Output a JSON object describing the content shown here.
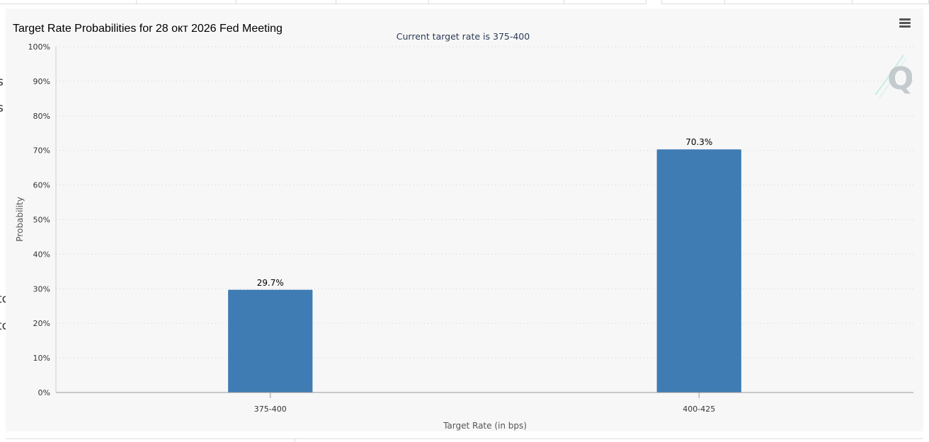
{
  "page": {
    "left_fragments": [
      "s",
      "s",
      "tc",
      "tc"
    ]
  },
  "chart": {
    "title": "Target Rate Probabilities for 28 окт 2026 Fed Meeting",
    "menu_icon": "hamburger-menu-icon",
    "watermark_icon": "quikstrike-q-logo-icon",
    "bar_color": "#3f7cb4"
  },
  "chart_data": {
    "type": "bar",
    "title": "Target Rate Probabilities for 28 окт 2026 Fed Meeting",
    "subtitle": "Current target rate is 375-400",
    "categories": [
      "375-400",
      "400-425"
    ],
    "values": [
      29.7,
      70.3
    ],
    "data_labels": [
      "29.7%",
      "70.3%"
    ],
    "xlabel": "Target Rate (in bps)",
    "ylabel": "Probability",
    "ylim": [
      0,
      100
    ],
    "yticks": [
      0,
      10,
      20,
      30,
      40,
      50,
      60,
      70,
      80,
      90,
      100
    ],
    "ytick_labels": [
      "0%",
      "10%",
      "20%",
      "30%",
      "40%",
      "50%",
      "60%",
      "70%",
      "80%",
      "90%",
      "100%"
    ],
    "grid": true,
    "legend": "none"
  }
}
